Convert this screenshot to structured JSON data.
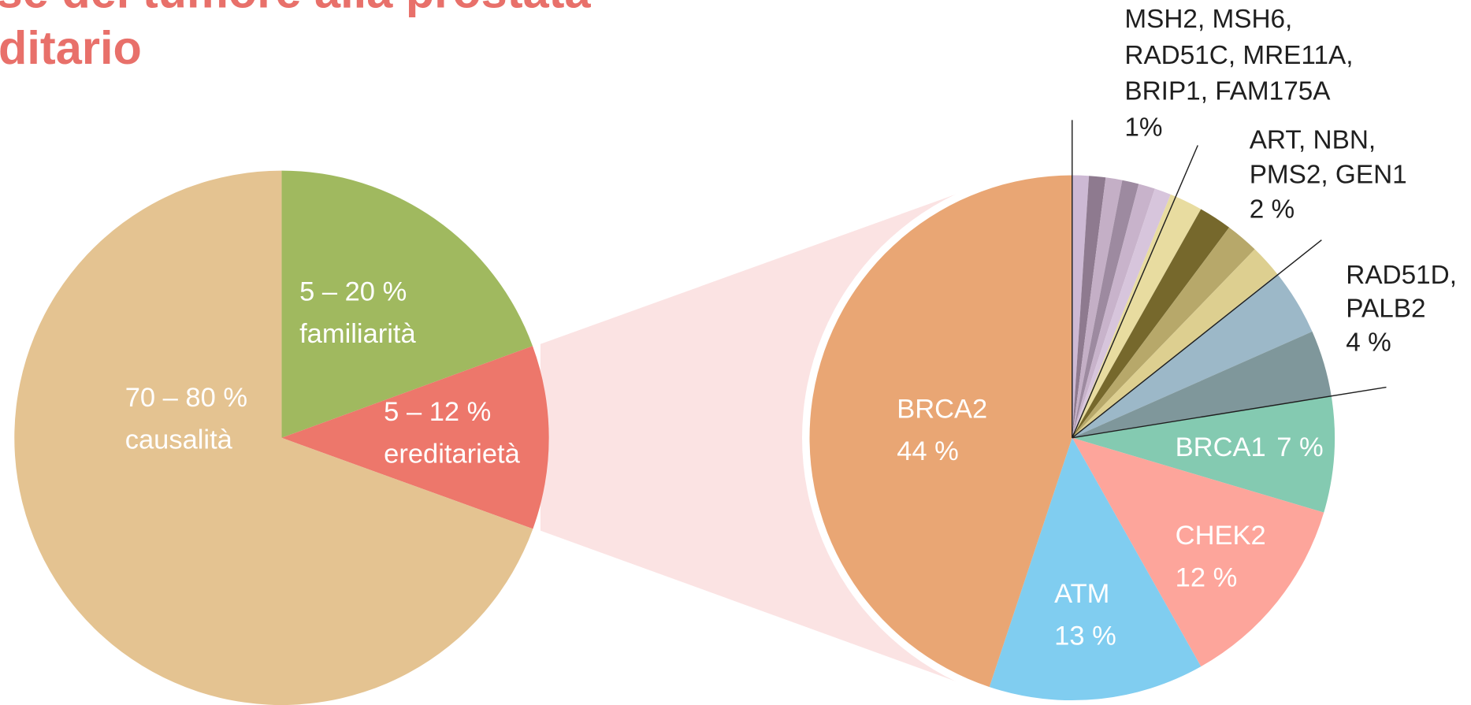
{
  "title": {
    "lines": [
      "se del tumore alla prostata",
      "ditario"
    ]
  },
  "chart_data": [
    {
      "type": "pie",
      "slices": [
        {
          "value": 19.4,
          "labels": [
            "5 – 20 %",
            "familiarità"
          ],
          "color": "#a0b95f"
        },
        {
          "value": 11.1,
          "labels": [
            "5 – 12 %",
            "ereditarietà"
          ],
          "color": "#ed776b"
        },
        {
          "value": 69.4,
          "labels": [
            "70 – 80 %",
            "causalità"
          ],
          "color": "#e4c391"
        }
      ]
    },
    {
      "type": "pie",
      "groups": [
        {
          "lines": [
            "MSH2, MSH6,",
            "RAD51C, MRE11A,",
            "BRIP1, FAM175A"
          ],
          "value_label": "1%",
          "values": [
            1,
            1,
            1,
            1,
            1,
            1
          ],
          "colors": [
            "#cdb9d4",
            "#8e7a8f",
            "#c4afc6",
            "#9d8aa0",
            "#c8b3cb",
            "#d7c5dc"
          ]
        },
        {
          "lines": [
            "ART, NBN,",
            "PMS2, GEN1"
          ],
          "value_label": "2 %",
          "values": [
            2,
            2,
            2,
            2
          ],
          "colors": [
            "#e8dca0",
            "#76682c",
            "#b7a86a",
            "#ddcf90"
          ]
        },
        {
          "lines": [
            "RAD51D,",
            "PALB2"
          ],
          "value_label": "4 %",
          "values": [
            4,
            4
          ],
          "colors": [
            "#9cb8c8",
            "#7f979b"
          ]
        },
        {
          "lines": [
            "BRCA1"
          ],
          "value_label": "7 %",
          "values": [
            7
          ],
          "colors": [
            "#84cab1"
          ]
        },
        {
          "lines": [
            "CHEK2"
          ],
          "value_label": "12 %",
          "values": [
            12
          ],
          "colors": [
            "#fda59b"
          ]
        },
        {
          "lines": [
            "ATM"
          ],
          "value_label": "13 %",
          "values": [
            13
          ],
          "colors": [
            "#80cdf0"
          ]
        },
        {
          "lines": [
            "BRCA2"
          ],
          "value_label": "44 %",
          "values": [
            44
          ],
          "colors": [
            "#e9a674"
          ]
        }
      ]
    }
  ]
}
